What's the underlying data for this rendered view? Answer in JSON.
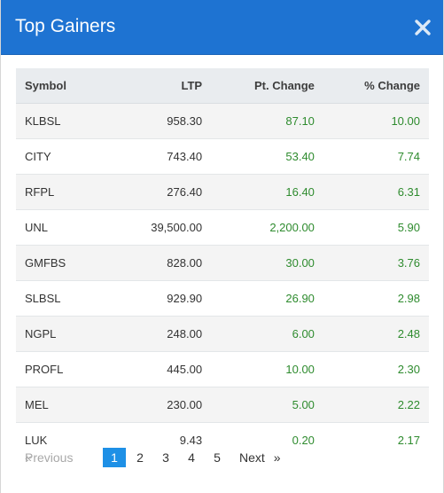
{
  "modal": {
    "title": "Top Gainers",
    "close_icon": "close-icon"
  },
  "table": {
    "headers": [
      "Symbol",
      "LTP",
      "Pt. Change",
      "% Change"
    ],
    "rows": [
      {
        "symbol": "KLBSL",
        "ltp": "958.30",
        "pt_change": "87.10",
        "pct_change": "10.00"
      },
      {
        "symbol": "CITY",
        "ltp": "743.40",
        "pt_change": "53.40",
        "pct_change": "7.74"
      },
      {
        "symbol": "RFPL",
        "ltp": "276.40",
        "pt_change": "16.40",
        "pct_change": "6.31"
      },
      {
        "symbol": "UNL",
        "ltp": "39,500.00",
        "pt_change": "2,200.00",
        "pct_change": "5.90"
      },
      {
        "symbol": "GMFBS",
        "ltp": "828.00",
        "pt_change": "30.00",
        "pct_change": "3.76"
      },
      {
        "symbol": "SLBSL",
        "ltp": "929.90",
        "pt_change": "26.90",
        "pct_change": "2.98"
      },
      {
        "symbol": "NGPL",
        "ltp": "248.00",
        "pt_change": "6.00",
        "pct_change": "2.48"
      },
      {
        "symbol": "PROFL",
        "ltp": "445.00",
        "pt_change": "10.00",
        "pct_change": "2.30"
      },
      {
        "symbol": "MEL",
        "ltp": "230.00",
        "pt_change": "5.00",
        "pct_change": "2.22"
      },
      {
        "symbol": "LUK",
        "ltp": "9.43",
        "pt_change": "0.20",
        "pct_change": "2.17"
      }
    ]
  },
  "pagination": {
    "prev_arrow": "«",
    "prev_label": "Previous",
    "pages": [
      "1",
      "2",
      "3",
      "4",
      "5"
    ],
    "active_page": "1",
    "next_label": "Next",
    "next_arrow": "»"
  },
  "colors": {
    "header_bg": "#1e73d2",
    "positive": "#2e8b2e",
    "active_page": "#1e90e6"
  }
}
